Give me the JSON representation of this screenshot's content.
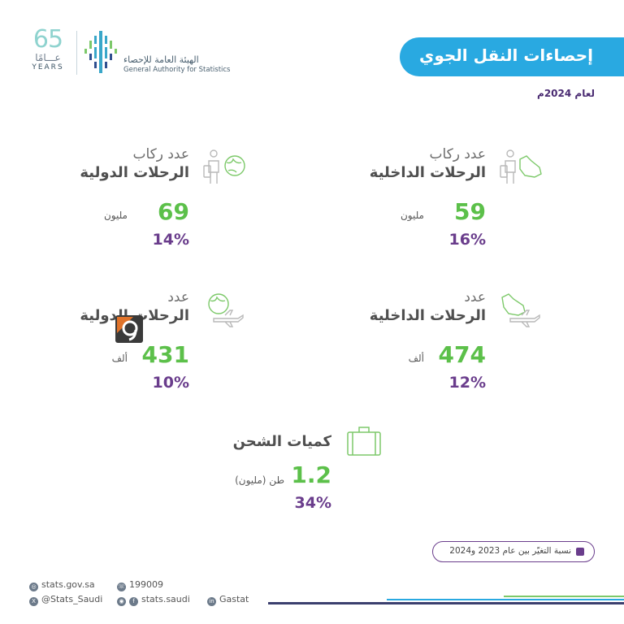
{
  "header": {
    "logo_number": "65",
    "logo_arabic": "عـــامًا",
    "logo_years": "YEARS",
    "org_name_ar": "الهيئة العامة للإحصاء",
    "org_name_en": "General Authority for Statistics",
    "title": "إحصاءات النقل الجوي",
    "year_label": "لعام 2024م"
  },
  "cards": [
    {
      "line1": "عدد ركاب",
      "line2": "الرحلات الدولية",
      "value": "69",
      "unit": "مليون",
      "change": "14%",
      "icon": "traveler-globe-icon"
    },
    {
      "line1": "عدد ركاب",
      "line2": "الرحلات الداخلية",
      "value": "59",
      "unit": "مليون",
      "change": "16%",
      "icon": "traveler-saudi-map-icon"
    },
    {
      "line1": "عدد",
      "line2": "الرحلات الدولية",
      "value": "431",
      "unit": "ألف",
      "change": "10%",
      "icon": "globe-airplane-icon"
    },
    {
      "line1": "عدد",
      "line2": "الرحلات الداخلية",
      "value": "474",
      "unit": "ألف",
      "change": "12%",
      "icon": "saudi-map-airplane-icon"
    }
  ],
  "cargo": {
    "title": "كميات الشحن",
    "value": "1.2",
    "unit": "طن (مليون)",
    "change": "34%",
    "icon": "cargo-box-icon"
  },
  "legend": {
    "text": "نسبة التغيّر بين عام 2023 و2024"
  },
  "footer": {
    "website": "stats.gov.sa",
    "phone": "199009",
    "x_handle": "@Stats_Saudi",
    "social_handle": "stats.saudi",
    "linkedin": "Gastat"
  },
  "colors": {
    "title_pill": "#29a9e1",
    "value_green": "#5cc04a",
    "change_purple": "#6a3d8c",
    "footer_line_dark": "#3b3f6e"
  }
}
